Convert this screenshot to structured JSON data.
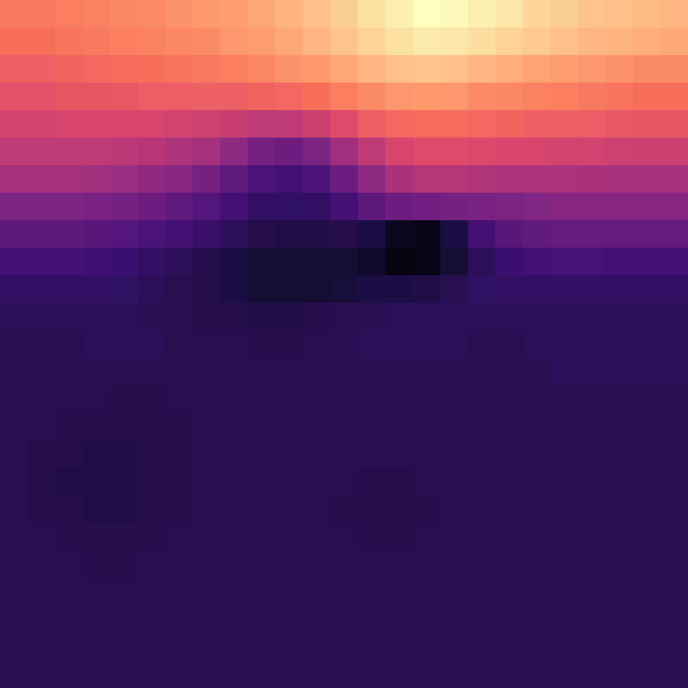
{
  "chart_data": {
    "type": "heatmap",
    "tick_labels": false,
    "zlim": [
      0,
      100
    ],
    "cells": [
      [
        72,
        72,
        73,
        74,
        75,
        76,
        77,
        79,
        80,
        82,
        84,
        87,
        90,
        94,
        97,
        100,
        99,
        97,
        95,
        92,
        90,
        88,
        87,
        86,
        85
      ],
      [
        70,
        70,
        71,
        72,
        73,
        74,
        75,
        76,
        78,
        80,
        82,
        85,
        88,
        91,
        94,
        96,
        95,
        93,
        91,
        89,
        87,
        85,
        84,
        83,
        82
      ],
      [
        66,
        66,
        67,
        68,
        69,
        70,
        71,
        72,
        73,
        75,
        77,
        79,
        82,
        85,
        87,
        88,
        87,
        85,
        83,
        81,
        80,
        78,
        77,
        76,
        76
      ],
      [
        62,
        62,
        63,
        63,
        64,
        65,
        65,
        66,
        66,
        67,
        68,
        70,
        73,
        76,
        78,
        79,
        78,
        76,
        75,
        74,
        73,
        72,
        71,
        70,
        70
      ],
      [
        57,
        57,
        58,
        58,
        58,
        58,
        57,
        56,
        54,
        52,
        52,
        55,
        60,
        65,
        68,
        69,
        69,
        68,
        67,
        66,
        66,
        65,
        64,
        63,
        63
      ],
      [
        52,
        52,
        52,
        52,
        51,
        50,
        48,
        45,
        40,
        34,
        32,
        36,
        44,
        52,
        58,
        60,
        60,
        59,
        58,
        58,
        57,
        57,
        56,
        55,
        55
      ],
      [
        45,
        45,
        45,
        44,
        43,
        41,
        38,
        34,
        29,
        24,
        22,
        25,
        32,
        40,
        47,
        50,
        50,
        49,
        48,
        48,
        48,
        47,
        46,
        46,
        46
      ],
      [
        36,
        36,
        36,
        35,
        34,
        32,
        29,
        26,
        22,
        18,
        17,
        18,
        22,
        28,
        32,
        33,
        34,
        35,
        36,
        37,
        38,
        38,
        38,
        38,
        38
      ],
      [
        28,
        28,
        28,
        27,
        26,
        24,
        22,
        19,
        16,
        14,
        13,
        13,
        14,
        12,
        6,
        4,
        12,
        22,
        27,
        29,
        30,
        30,
        30,
        30,
        30
      ],
      [
        22,
        22,
        22,
        21,
        20,
        18,
        16,
        14,
        12,
        10,
        9,
        9,
        10,
        8,
        2,
        3,
        9,
        16,
        20,
        22,
        23,
        23,
        22,
        22,
        22
      ],
      [
        18,
        18,
        18,
        18,
        17,
        16,
        15,
        14,
        12,
        10,
        10,
        10,
        11,
        12,
        12,
        13,
        15,
        17,
        18,
        18,
        18,
        18,
        18,
        18,
        18
      ],
      [
        16,
        16,
        16,
        16,
        16,
        15,
        15,
        14,
        14,
        13,
        13,
        14,
        15,
        15,
        16,
        16,
        16,
        16,
        16,
        16,
        16,
        16,
        16,
        16,
        16
      ],
      [
        15,
        15,
        15,
        16,
        16,
        16,
        15,
        15,
        15,
        14,
        14,
        15,
        15,
        16,
        16,
        16,
        16,
        15,
        15,
        16,
        16,
        16,
        16,
        16,
        16
      ],
      [
        15,
        15,
        15,
        15,
        15,
        15,
        15,
        15,
        15,
        15,
        15,
        15,
        15,
        15,
        15,
        15,
        15,
        15,
        15,
        15,
        16,
        16,
        16,
        16,
        16
      ],
      [
        15,
        15,
        15,
        15,
        14,
        14,
        15,
        15,
        15,
        15,
        15,
        15,
        15,
        15,
        15,
        15,
        15,
        15,
        15,
        15,
        15,
        15,
        15,
        15,
        15
      ],
      [
        15,
        15,
        14,
        14,
        14,
        14,
        14,
        15,
        15,
        15,
        15,
        15,
        15,
        15,
        15,
        15,
        15,
        15,
        15,
        15,
        15,
        15,
        15,
        15,
        15
      ],
      [
        15,
        14,
        14,
        13,
        13,
        14,
        14,
        15,
        15,
        15,
        15,
        15,
        15,
        15,
        15,
        15,
        15,
        15,
        15,
        15,
        15,
        15,
        15,
        15,
        15
      ],
      [
        15,
        14,
        13,
        13,
        13,
        14,
        14,
        15,
        15,
        15,
        15,
        15,
        15,
        14,
        14,
        15,
        15,
        15,
        15,
        15,
        15,
        15,
        15,
        15,
        15
      ],
      [
        15,
        14,
        14,
        13,
        13,
        14,
        14,
        15,
        15,
        15,
        15,
        15,
        14,
        14,
        14,
        14,
        15,
        15,
        15,
        15,
        15,
        15,
        15,
        15,
        15
      ],
      [
        15,
        15,
        14,
        14,
        14,
        14,
        15,
        15,
        15,
        15,
        15,
        15,
        15,
        14,
        14,
        15,
        15,
        15,
        15,
        15,
        15,
        15,
        15,
        15,
        15
      ],
      [
        15,
        15,
        15,
        14,
        14,
        15,
        15,
        15,
        15,
        15,
        15,
        15,
        15,
        15,
        15,
        15,
        15,
        15,
        15,
        15,
        15,
        15,
        15,
        15,
        15
      ],
      [
        15,
        15,
        15,
        15,
        15,
        15,
        15,
        15,
        15,
        15,
        15,
        15,
        15,
        15,
        15,
        15,
        15,
        15,
        15,
        15,
        15,
        15,
        15,
        15,
        15
      ],
      [
        15,
        15,
        15,
        15,
        15,
        15,
        15,
        15,
        15,
        15,
        15,
        15,
        15,
        15,
        15,
        15,
        15,
        15,
        15,
        15,
        15,
        15,
        15,
        15,
        15
      ],
      [
        15,
        15,
        15,
        15,
        15,
        15,
        15,
        15,
        15,
        15,
        15,
        15,
        15,
        15,
        15,
        15,
        15,
        15,
        15,
        15,
        15,
        15,
        15,
        15,
        15
      ],
      [
        15,
        15,
        15,
        15,
        15,
        15,
        15,
        15,
        15,
        15,
        15,
        15,
        15,
        15,
        15,
        15,
        15,
        15,
        15,
        15,
        15,
        15,
        15,
        15,
        15
      ]
    ]
  }
}
